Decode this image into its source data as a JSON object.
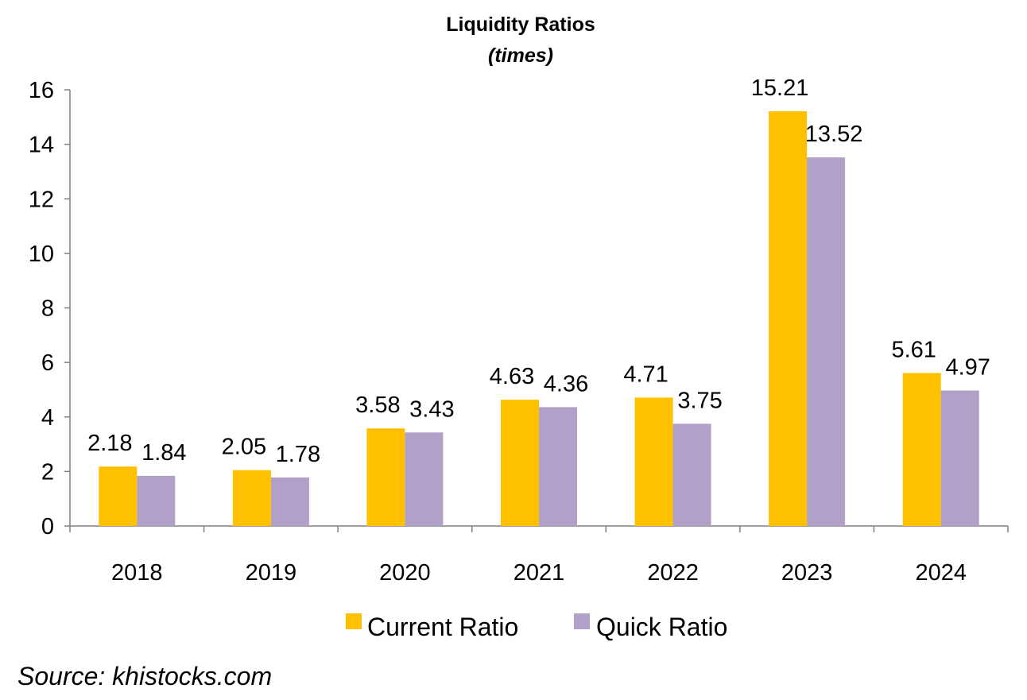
{
  "chart_data": {
    "type": "bar",
    "title": "Liquidity Ratios",
    "subtitle": "(times)",
    "categories": [
      "2018",
      "2019",
      "2020",
      "2021",
      "2022",
      "2023",
      "2024"
    ],
    "series": [
      {
        "name": "Current Ratio",
        "color": "#FFC000",
        "values": [
          2.18,
          2.05,
          3.58,
          4.63,
          4.71,
          15.21,
          5.61
        ],
        "labels": [
          "2.18",
          "2.05",
          "3.58",
          "4.63",
          "4.71",
          "15.21",
          "5.61"
        ]
      },
      {
        "name": "Quick Ratio",
        "color": "#B1A0C7",
        "values": [
          1.84,
          1.78,
          3.43,
          4.36,
          3.75,
          13.52,
          4.97
        ],
        "labels": [
          "1.84",
          "1.78",
          "3.43",
          "4.36",
          "3.75",
          "13.52",
          "4.97"
        ]
      }
    ],
    "ylim": [
      0,
      16
    ],
    "yticks": [
      0,
      2,
      4,
      6,
      8,
      10,
      12,
      14,
      16
    ],
    "grid": false,
    "legend_position": "bottom",
    "xlabel": "",
    "ylabel": ""
  },
  "source": "Source: khistocks.com"
}
